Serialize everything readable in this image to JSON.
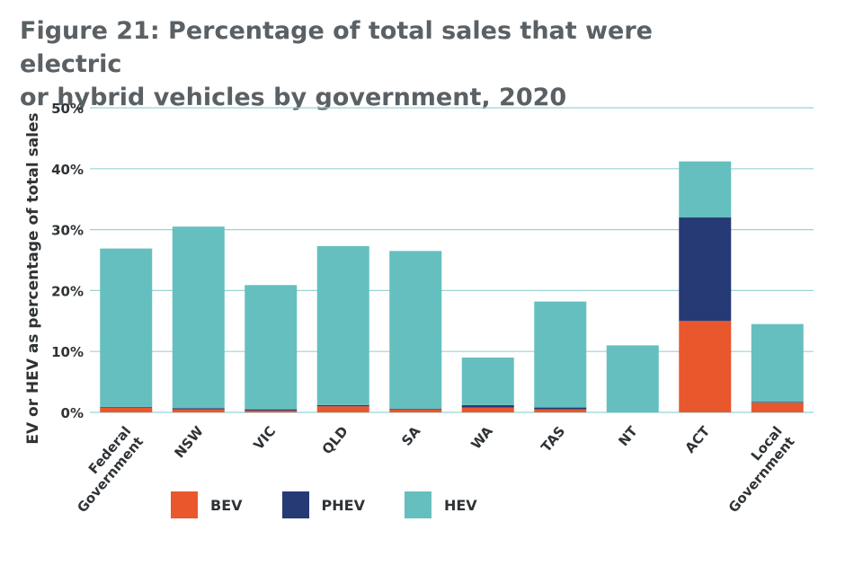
{
  "title_line1": "Figure 21: Percentage of total sales that were electric",
  "title_line2": "or hybrid vehicles by government, 2020",
  "colors": {
    "BEV": "#e9572d",
    "PHEV": "#263a75",
    "HEV": "#65bfbf",
    "gridline": "#9bd3d6"
  },
  "legend": [
    {
      "label": "BEV",
      "color": "#e9572d"
    },
    {
      "label": "PHEV",
      "color": "#263a75"
    },
    {
      "label": "HEV",
      "color": "#65bfbf"
    }
  ],
  "chart_data": {
    "type": "bar",
    "stacked": true,
    "title": "Figure 21: Percentage of total sales that were electric or hybrid vehicles by government, 2020",
    "xlabel": "",
    "ylabel": "EV or HEV as percentage of total sales",
    "ylim": [
      0,
      50
    ],
    "yticks": [
      "0%",
      "10%",
      "20%",
      "30%",
      "40%",
      "50%"
    ],
    "grid": true,
    "legend_position": "bottom",
    "categories": [
      "Federal Government",
      "NSW",
      "VIC",
      "QLD",
      "SA",
      "WA",
      "TAS",
      "NT",
      "ACT",
      "Local Government"
    ],
    "series": [
      {
        "name": "BEV",
        "values": [
          0.8,
          0.5,
          0.3,
          1.0,
          0.5,
          0.8,
          0.5,
          0.0,
          15.0,
          1.6
        ]
      },
      {
        "name": "PHEV",
        "values": [
          0.1,
          0.2,
          0.2,
          0.2,
          0.1,
          0.4,
          0.3,
          0.0,
          17.0,
          0.1
        ]
      },
      {
        "name": "HEV",
        "values": [
          26.0,
          29.8,
          20.4,
          26.1,
          25.9,
          7.8,
          17.4,
          11.0,
          9.2,
          12.8
        ]
      }
    ]
  }
}
